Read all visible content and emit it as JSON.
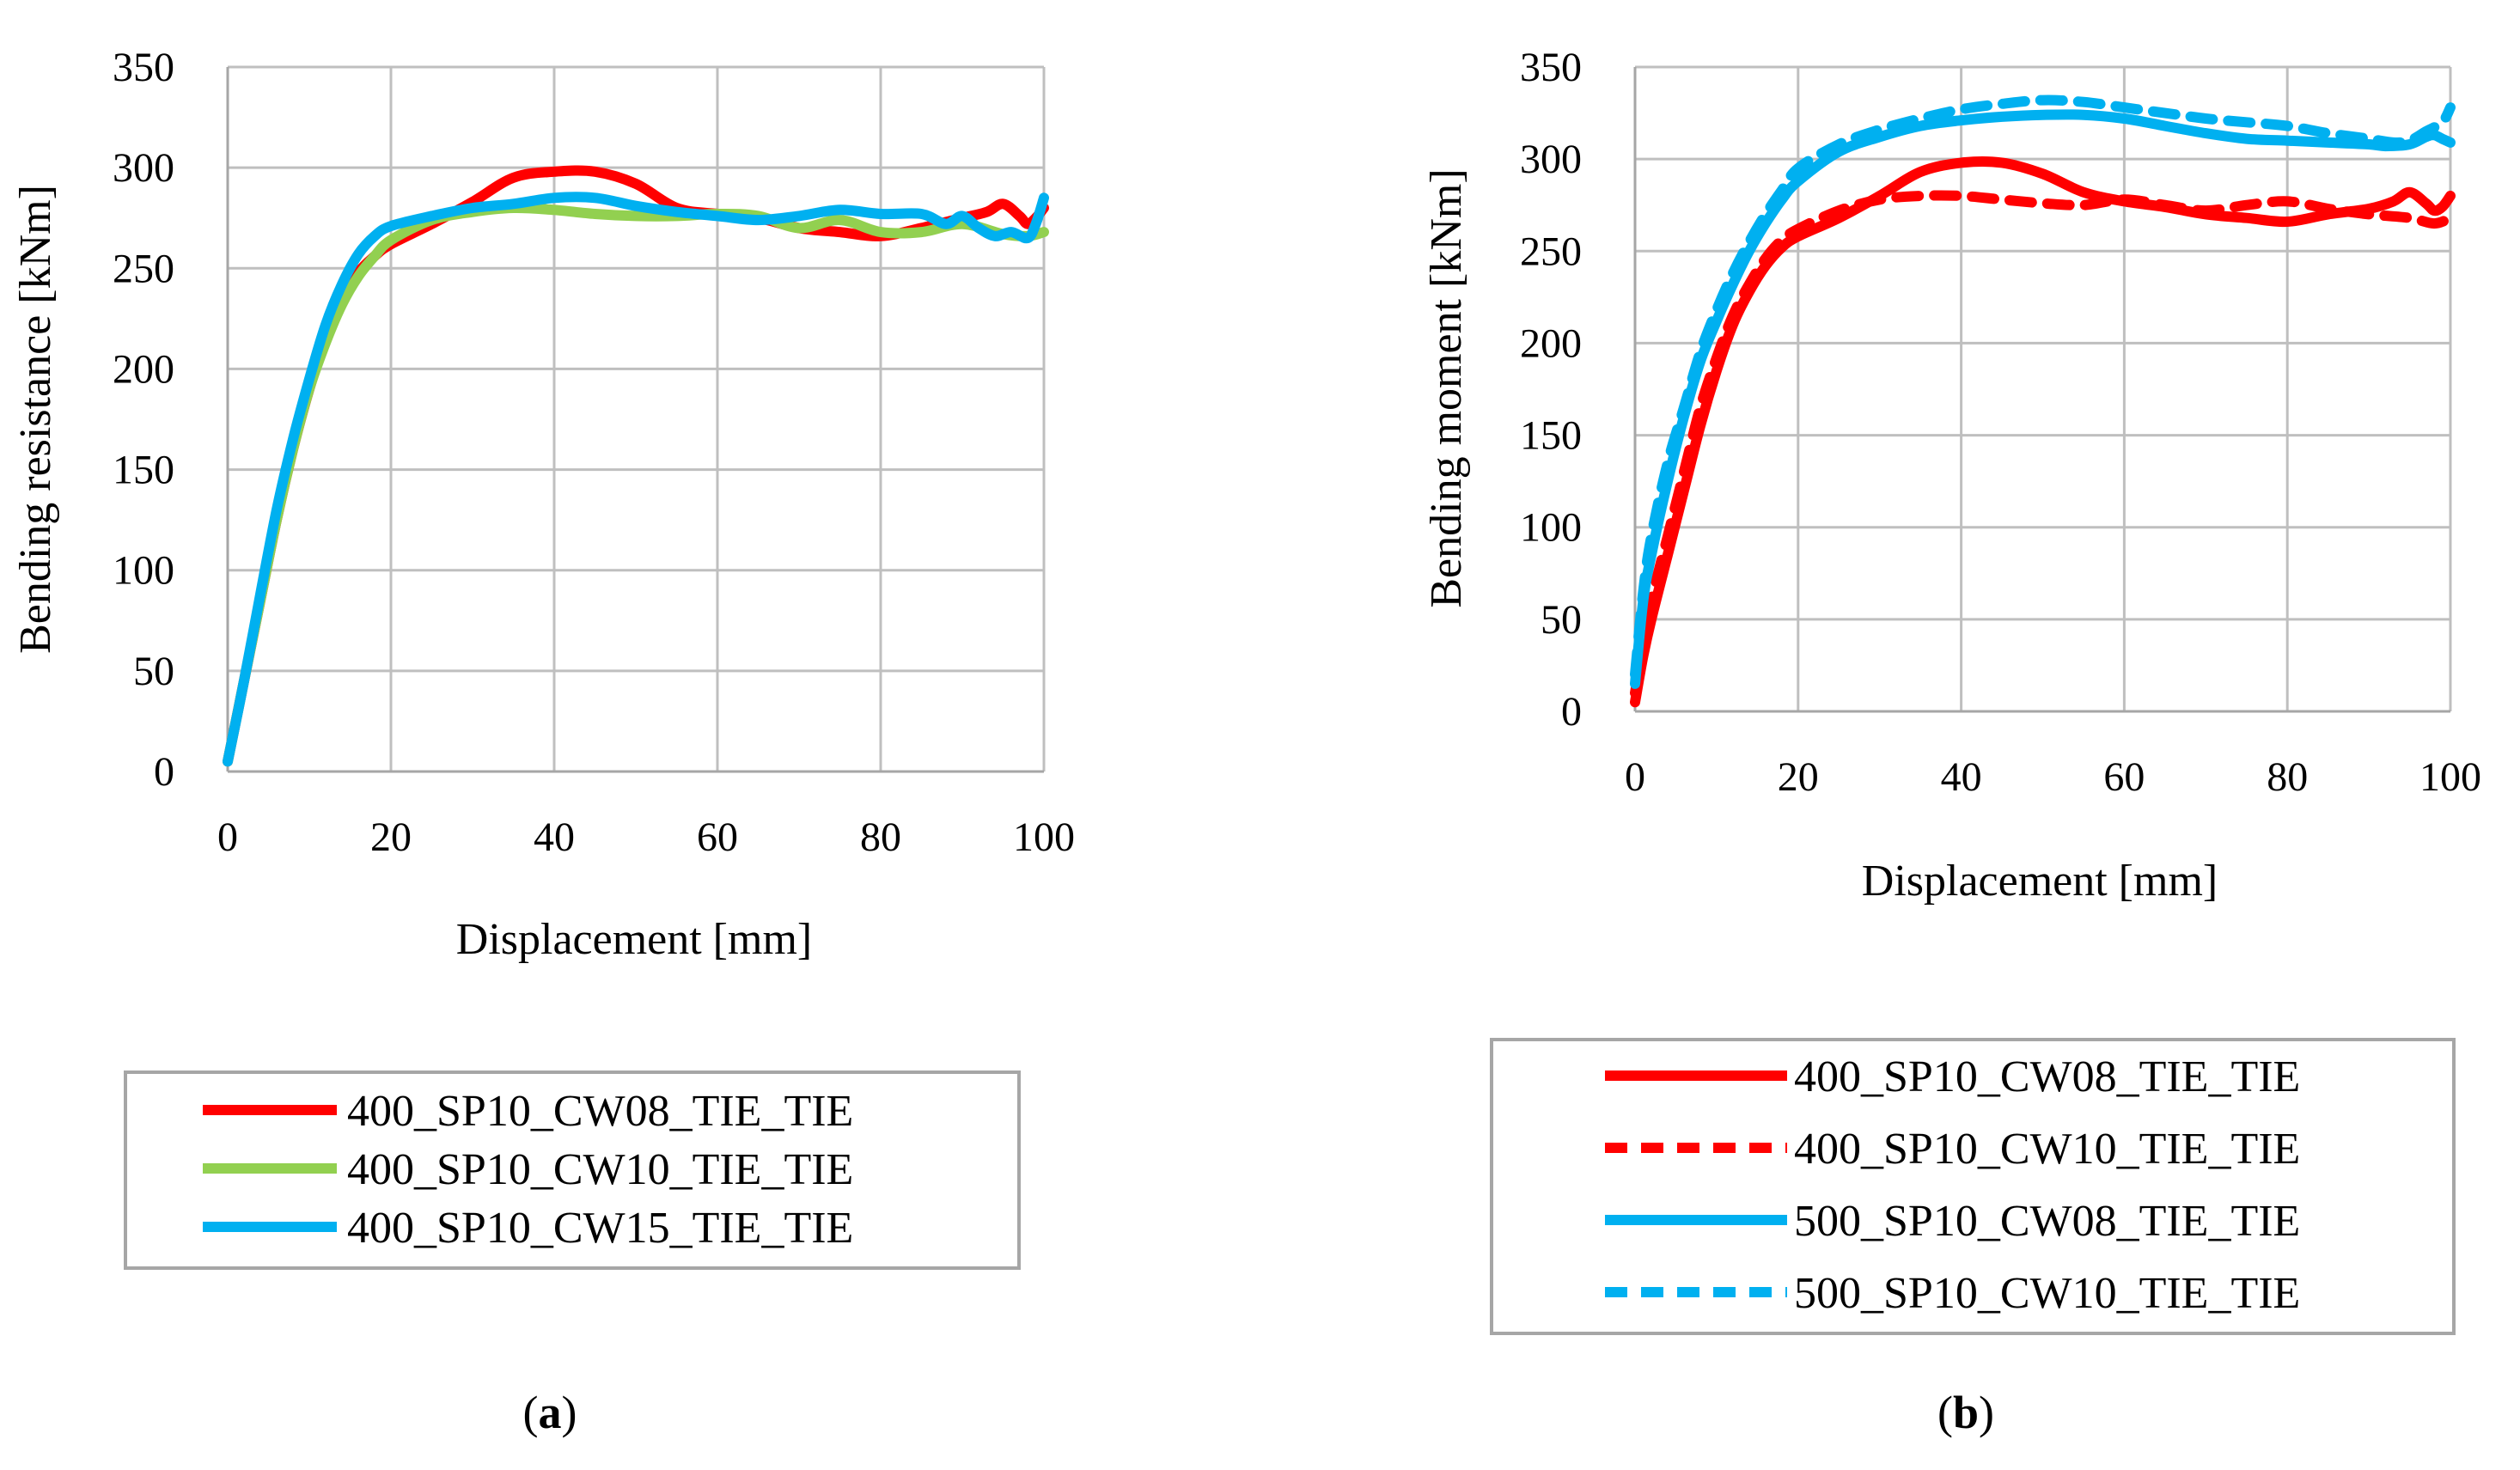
{
  "chart_data": [
    {
      "type": "line",
      "panel": "a",
      "caption_letter": "a",
      "xlabel": "Displacement [mm]",
      "ylabel": "Bending resistance [kNm]",
      "xlim": [
        0,
        100
      ],
      "ylim": [
        0,
        350
      ],
      "xticks": [
        0,
        20,
        40,
        60,
        80,
        100
      ],
      "yticks": [
        0,
        50,
        100,
        150,
        200,
        250,
        300,
        350
      ],
      "grid": true,
      "legend_position": "below",
      "series": [
        {
          "name": "400_SP10_CW08_TIE_TIE",
          "color": "#ff0000",
          "dash": "solid",
          "x": [
            0,
            2,
            4,
            6,
            8,
            10,
            12,
            14,
            16,
            18,
            20,
            25,
            30,
            35,
            40,
            45,
            50,
            55,
            60,
            65,
            70,
            75,
            80,
            85,
            90,
            93,
            95,
            97,
            98,
            99,
            100
          ],
          "y": [
            5,
            45,
            85,
            125,
            160,
            190,
            215,
            235,
            248,
            256,
            262,
            272,
            283,
            295,
            298,
            298,
            292,
            280,
            277,
            275,
            270,
            268,
            266,
            270,
            275,
            278,
            282,
            276,
            272,
            275,
            280
          ]
        },
        {
          "name": "400_SP10_CW10_TIE_TIE",
          "color": "#92d050",
          "dash": "solid",
          "x": [
            0,
            2,
            4,
            6,
            8,
            10,
            12,
            14,
            16,
            18,
            20,
            25,
            30,
            35,
            40,
            45,
            50,
            55,
            60,
            65,
            70,
            75,
            80,
            85,
            90,
            95,
            98,
            100
          ],
          "y": [
            5,
            45,
            85,
            125,
            160,
            190,
            213,
            232,
            246,
            256,
            264,
            274,
            278,
            280,
            279,
            277,
            276,
            276,
            277,
            276,
            270,
            274,
            268,
            268,
            272,
            267,
            266,
            268
          ]
        },
        {
          "name": "400_SP10_CW15_TIE_TIE",
          "color": "#00b0f0",
          "dash": "solid",
          "x": [
            0,
            2,
            4,
            6,
            8,
            10,
            12,
            14,
            16,
            18,
            20,
            25,
            30,
            35,
            40,
            45,
            50,
            55,
            60,
            65,
            70,
            75,
            80,
            85,
            88,
            90,
            92,
            94,
            96,
            98,
            99,
            100
          ],
          "y": [
            5,
            45,
            88,
            130,
            165,
            195,
            222,
            242,
            257,
            266,
            271,
            276,
            280,
            282,
            285,
            285,
            281,
            278,
            276,
            274,
            276,
            279,
            277,
            277,
            272,
            276,
            270,
            266,
            268,
            265,
            272,
            285
          ]
        }
      ]
    },
    {
      "type": "line",
      "panel": "b",
      "caption_letter": "b",
      "xlabel": "Displacement [mm]",
      "ylabel": "Bending moment [kNm]",
      "xlim": [
        0,
        100
      ],
      "ylim": [
        0,
        350
      ],
      "xticks": [
        0,
        20,
        40,
        60,
        80,
        100
      ],
      "yticks": [
        0,
        50,
        100,
        150,
        200,
        250,
        300,
        350
      ],
      "grid": true,
      "legend_position": "below",
      "series": [
        {
          "name": "400_SP10_CW08_TIE_TIE",
          "color": "#ff0000",
          "dash": "solid",
          "x": [
            0,
            1,
            2,
            4,
            6,
            8,
            10,
            12,
            14,
            16,
            18,
            20,
            25,
            30,
            35,
            40,
            45,
            50,
            55,
            60,
            65,
            70,
            75,
            80,
            85,
            90,
            93,
            95,
            97,
            98,
            99,
            100
          ],
          "y": [
            5,
            30,
            50,
            85,
            120,
            155,
            185,
            210,
            228,
            242,
            252,
            258,
            268,
            280,
            293,
            298,
            298,
            292,
            282,
            277,
            274,
            270,
            268,
            266,
            270,
            273,
            277,
            282,
            276,
            272,
            274,
            280
          ]
        },
        {
          "name": "400_SP10_CW10_TIE_TIE",
          "color": "#ff0000",
          "dash": "dashed",
          "x": [
            0,
            1,
            2,
            4,
            6,
            8,
            10,
            12,
            14,
            16,
            18,
            20,
            25,
            30,
            35,
            40,
            45,
            50,
            55,
            60,
            65,
            70,
            75,
            80,
            85,
            90,
            95,
            98,
            100
          ],
          "y": [
            10,
            35,
            60,
            95,
            130,
            165,
            192,
            215,
            232,
            246,
            256,
            262,
            272,
            278,
            280,
            280,
            278,
            276,
            275,
            278,
            275,
            272,
            275,
            277,
            273,
            270,
            268,
            265,
            268
          ]
        },
        {
          "name": "500_SP10_CW08_TIE_TIE",
          "color": "#00b0f0",
          "dash": "solid",
          "x": [
            0,
            1,
            2,
            4,
            6,
            8,
            10,
            12,
            14,
            16,
            18,
            20,
            25,
            30,
            35,
            40,
            45,
            50,
            55,
            60,
            65,
            70,
            75,
            80,
            85,
            90,
            92,
            95,
            97,
            98,
            99,
            100
          ],
          "y": [
            15,
            60,
            85,
            125,
            160,
            190,
            212,
            232,
            250,
            265,
            278,
            288,
            304,
            312,
            318,
            321,
            323,
            324,
            324,
            322,
            318,
            314,
            311,
            310,
            309,
            308,
            307,
            308,
            312,
            313,
            311,
            309
          ]
        },
        {
          "name": "500_SP10_CW10_TIE_TIE",
          "color": "#00b0f0",
          "dash": "dashed",
          "x": [
            0,
            1,
            2,
            4,
            6,
            8,
            10,
            12,
            14,
            16,
            18,
            20,
            25,
            30,
            35,
            40,
            45,
            50,
            55,
            60,
            65,
            70,
            75,
            80,
            85,
            90,
            93,
            95,
            97,
            99,
            100
          ],
          "y": [
            20,
            65,
            95,
            135,
            165,
            195,
            218,
            238,
            255,
            270,
            283,
            295,
            308,
            316,
            322,
            327,
            330,
            332,
            331,
            328,
            325,
            322,
            320,
            318,
            314,
            311,
            309,
            310,
            315,
            320,
            328
          ]
        }
      ]
    }
  ]
}
